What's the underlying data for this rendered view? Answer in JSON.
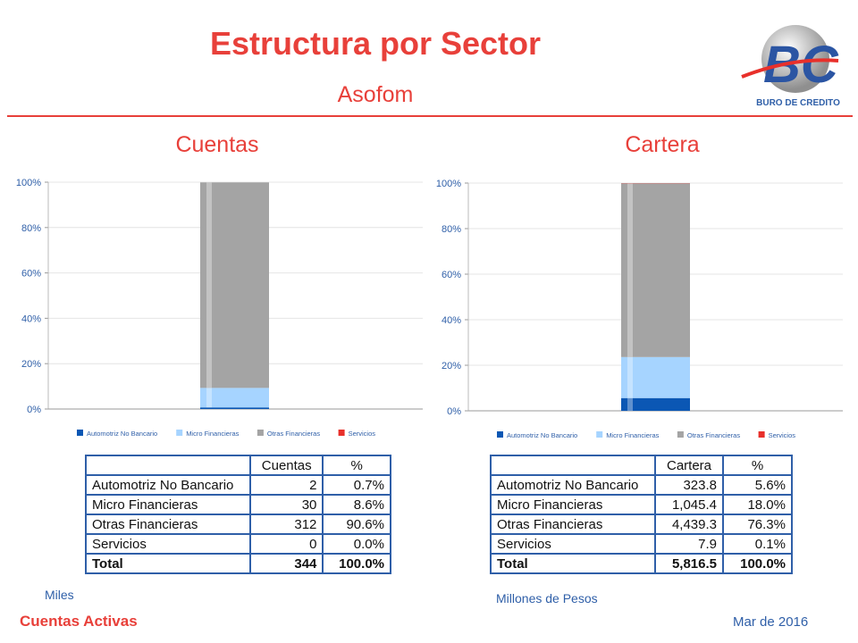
{
  "header": {
    "title": "Estructura por Sector",
    "subtitle": "Asofom",
    "logo_text": "BURO DE CREDITO"
  },
  "colors": {
    "accent": "#e8403a",
    "blue_text": "#2f5fa8",
    "series": [
      "#0b57b4",
      "#a6d4ff",
      "#a4a4a4",
      "#e8302b"
    ]
  },
  "legend": [
    "Automotriz No Bancario",
    "Micro Financieras",
    "Otras Financieras",
    "Servicios"
  ],
  "chart_data": [
    {
      "type": "bar",
      "stacked": true,
      "title": "Cuentas",
      "categories": [
        ""
      ],
      "series": [
        {
          "name": "Automotriz No Bancario",
          "values": [
            0.7
          ]
        },
        {
          "name": "Micro Financieras",
          "values": [
            8.6
          ]
        },
        {
          "name": "Otras Financieras",
          "values": [
            90.6
          ]
        },
        {
          "name": "Servicios",
          "values": [
            0.0
          ]
        }
      ],
      "yticks": [
        "0%",
        "20%",
        "40%",
        "60%",
        "80%",
        "100%"
      ],
      "ylim": [
        0,
        100
      ],
      "grid": true,
      "legend_position": "bottom"
    },
    {
      "type": "bar",
      "stacked": true,
      "title": "Cartera",
      "categories": [
        ""
      ],
      "series": [
        {
          "name": "Automotriz No Bancario",
          "values": [
            5.6
          ]
        },
        {
          "name": "Micro Financieras",
          "values": [
            18.0
          ]
        },
        {
          "name": "Otras Financieras",
          "values": [
            76.3
          ]
        },
        {
          "name": "Servicios",
          "values": [
            0.1
          ]
        }
      ],
      "yticks": [
        "0%",
        "20%",
        "40%",
        "60%",
        "80%",
        "100%"
      ],
      "ylim": [
        0,
        100
      ],
      "grid": true,
      "legend_position": "bottom"
    }
  ],
  "tables": [
    {
      "headers": [
        "",
        "Cuentas",
        "%"
      ],
      "rows": [
        [
          "Automotriz No Bancario",
          "2",
          "0.7%"
        ],
        [
          "Micro Financieras",
          "30",
          "8.6%"
        ],
        [
          "Otras Financieras",
          "312",
          "90.6%"
        ],
        [
          "Servicios",
          "0",
          "0.0%"
        ]
      ],
      "total": [
        "Total",
        "344",
        "100.0%"
      ],
      "note": "Miles"
    },
    {
      "headers": [
        "",
        "Cartera",
        "%"
      ],
      "rows": [
        [
          "Automotriz No Bancario",
          "323.8",
          "5.6%"
        ],
        [
          "Micro Financieras",
          "1,045.4",
          "18.0%"
        ],
        [
          "Otras Financieras",
          "4,439.3",
          "76.3%"
        ],
        [
          "Servicios",
          "7.9",
          "0.1%"
        ]
      ],
      "total": [
        "Total",
        "5,816.5",
        "100.0%"
      ],
      "note": "Millones de Pesos"
    }
  ],
  "footer": {
    "left": "Cuentas Activas",
    "right": "Mar de 2016"
  }
}
